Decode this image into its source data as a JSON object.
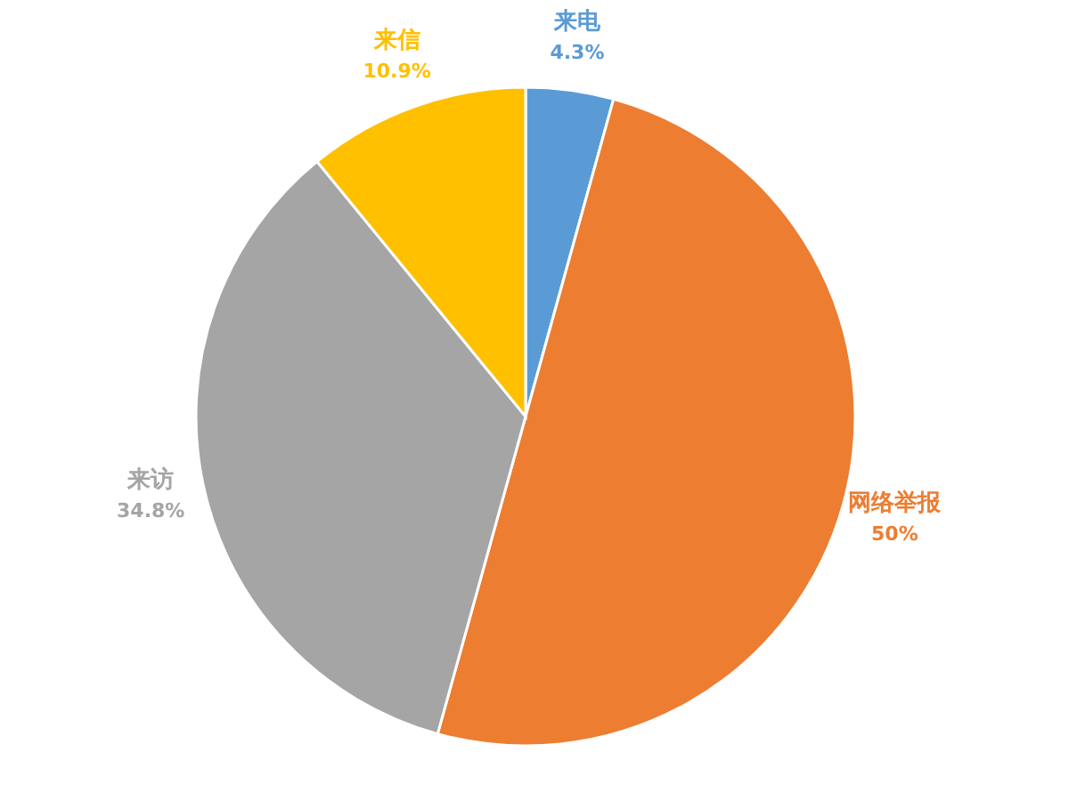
{
  "chart_data": {
    "type": "pie",
    "categories": [
      "来电",
      "网络举报",
      "来访",
      "来信"
    ],
    "values": [
      4.3,
      50,
      34.8,
      10.9
    ],
    "value_labels": [
      "4.3%",
      "50%",
      "34.8%",
      "10.9%"
    ],
    "colors": [
      "#5b9bd5",
      "#ed7d31",
      "#a5a5a5",
      "#ffc000"
    ],
    "legend": false
  }
}
